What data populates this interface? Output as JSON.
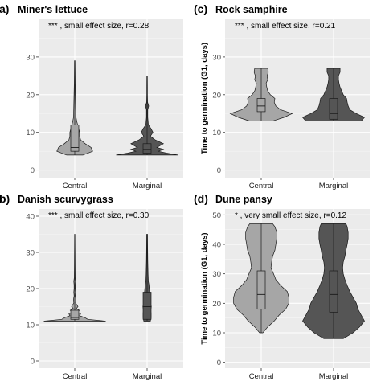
{
  "chart_data": [
    {
      "type": "violin",
      "tag": "a)",
      "title": "Miner's lettuce",
      "annotation": "*** , small effect size, r=0.28",
      "ylabel": "",
      "ylim": [
        -2,
        40
      ],
      "yticks": [
        "0",
        "10",
        "20",
        "30"
      ],
      "yticks_values": [
        0,
        10,
        20,
        30
      ],
      "categories": [
        "Central",
        "Marginal"
      ],
      "colors": [
        "#a6a6a6",
        "#555555"
      ],
      "series": [
        {
          "name": "Central",
          "min": 4,
          "q1": 5,
          "median": 6,
          "q3": 12,
          "max": 29,
          "density": [
            [
              4,
              0.25
            ],
            [
              5,
              0.55
            ],
            [
              6,
              0.5
            ],
            [
              7,
              0.32
            ],
            [
              8,
              0.18
            ],
            [
              9,
              0.15
            ],
            [
              10,
              0.15
            ],
            [
              11,
              0.12
            ],
            [
              12,
              0.09
            ],
            [
              13,
              0.06
            ],
            [
              14,
              0.04
            ],
            [
              15,
              0.035
            ],
            [
              17,
              0.03
            ],
            [
              19,
              0.025
            ],
            [
              21,
              0.02
            ],
            [
              23,
              0.015
            ],
            [
              25,
              0.012
            ],
            [
              27,
              0.01
            ],
            [
              29,
              0.008
            ]
          ]
        },
        {
          "name": "Marginal",
          "min": 4,
          "q1": 4.5,
          "median": 5.5,
          "q3": 7,
          "max": 25,
          "density": [
            [
              4,
              0.95
            ],
            [
              4.5,
              0.6
            ],
            [
              5,
              0.35
            ],
            [
              5.5,
              0.5
            ],
            [
              6,
              0.3
            ],
            [
              7,
              0.5
            ],
            [
              8,
              0.25
            ],
            [
              9,
              0.1
            ],
            [
              10,
              0.18
            ],
            [
              11,
              0.12
            ],
            [
              12,
              0.04
            ],
            [
              14,
              0.02
            ],
            [
              16,
              0.02
            ],
            [
              17,
              0.05
            ],
            [
              18,
              0.015
            ],
            [
              20,
              0.01
            ],
            [
              22,
              0.01
            ],
            [
              25,
              0.008
            ]
          ]
        }
      ]
    },
    {
      "type": "violin",
      "tag": "(c)",
      "title": "Rock samphire",
      "annotation": "*** , small effect size, r=0.21",
      "ylabel": "Time to germination (G1, days)",
      "ylim": [
        -2,
        40
      ],
      "yticks": [
        "0",
        "10",
        "20",
        "30"
      ],
      "yticks_values": [
        0,
        10,
        20,
        30
      ],
      "categories": [
        "Central",
        "Marginal"
      ],
      "colors": [
        "#a6a6a6",
        "#555555"
      ],
      "series": [
        {
          "name": "Central",
          "min": 13,
          "q1": 15.5,
          "median": 17,
          "q3": 19,
          "max": 27,
          "density": [
            [
              13,
              0.35
            ],
            [
              14,
              0.7
            ],
            [
              15,
              0.95
            ],
            [
              16,
              0.6
            ],
            [
              17,
              0.45
            ],
            [
              18,
              0.4
            ],
            [
              19,
              0.42
            ],
            [
              20,
              0.28
            ],
            [
              21,
              0.2
            ],
            [
              22,
              0.17
            ],
            [
              23,
              0.15
            ],
            [
              24,
              0.2
            ],
            [
              25,
              0.18
            ],
            [
              26,
              0.22
            ],
            [
              27,
              0.2
            ]
          ]
        },
        {
          "name": "Marginal",
          "min": 13,
          "q1": 13.5,
          "median": 15,
          "q3": 19,
          "max": 27,
          "density": [
            [
              13,
              0.85
            ],
            [
              14,
              0.95
            ],
            [
              15,
              0.7
            ],
            [
              16,
              0.5
            ],
            [
              17,
              0.45
            ],
            [
              18,
              0.42
            ],
            [
              19,
              0.4
            ],
            [
              20,
              0.3
            ],
            [
              21,
              0.25
            ],
            [
              22,
              0.2
            ],
            [
              23,
              0.17
            ],
            [
              24,
              0.15
            ],
            [
              25,
              0.15
            ],
            [
              26,
              0.2
            ],
            [
              27,
              0.2
            ]
          ]
        }
      ]
    },
    {
      "type": "violin",
      "tag": "b)",
      "title": "Danish scurvygrass",
      "annotation": "*** , small effect size, r=0.30",
      "ylabel": "",
      "ylim": [
        -2,
        42
      ],
      "yticks": [
        "0",
        "10",
        "20",
        "30",
        "40"
      ],
      "yticks_values": [
        0,
        10,
        20,
        30,
        40
      ],
      "categories": [
        "Central",
        "Marginal"
      ],
      "colors": [
        "#a6a6a6",
        "#555555"
      ],
      "series": [
        {
          "name": "Central",
          "min": 11,
          "q1": 11.5,
          "median": 12,
          "q3": 14,
          "max": 35,
          "density": [
            [
              11,
              0.95
            ],
            [
              11.5,
              0.4
            ],
            [
              12,
              0.3
            ],
            [
              12.5,
              0.15
            ],
            [
              13,
              0.18
            ],
            [
              13.5,
              0.08
            ],
            [
              14,
              0.14
            ],
            [
              14.5,
              0.05
            ],
            [
              15,
              0.1
            ],
            [
              16,
              0.03
            ],
            [
              17,
              0.04
            ],
            [
              18,
              0.02
            ],
            [
              19,
              0.03
            ],
            [
              20,
              0.02
            ],
            [
              21,
              0.02
            ],
            [
              22,
              0.03
            ],
            [
              23,
              0.015
            ],
            [
              25,
              0.012
            ],
            [
              28,
              0.01
            ],
            [
              31,
              0.008
            ],
            [
              35,
              0.006
            ]
          ]
        },
        {
          "name": "Marginal",
          "min": 11,
          "q1": 11.5,
          "median": 15,
          "q3": 19,
          "max": 35,
          "density": [
            [
              11,
              0.1
            ],
            [
              12,
              0.12
            ],
            [
              13,
              0.12
            ],
            [
              14,
              0.11
            ],
            [
              15,
              0.13
            ],
            [
              16,
              0.1
            ],
            [
              17,
              0.1
            ],
            [
              18,
              0.09
            ],
            [
              19,
              0.08
            ],
            [
              20,
              0.07
            ],
            [
              21,
              0.06
            ],
            [
              22,
              0.04
            ],
            [
              24,
              0.03
            ],
            [
              26,
              0.025
            ],
            [
              28,
              0.02
            ],
            [
              30,
              0.018
            ],
            [
              32,
              0.015
            ],
            [
              35,
              0.012
            ]
          ]
        }
      ]
    },
    {
      "type": "violin",
      "tag": "(d)",
      "title": "Dune pansy",
      "annotation": "* , very small effect size, r=0.12",
      "ylabel": "Time to germination (G1, days)",
      "ylim": [
        -2,
        52
      ],
      "yticks": [
        "0",
        "10",
        "20",
        "30",
        "40",
        "50"
      ],
      "yticks_values": [
        0,
        10,
        20,
        30,
        40,
        50
      ],
      "categories": [
        "Central",
        "Marginal"
      ],
      "colors": [
        "#a6a6a6",
        "#555555"
      ],
      "series": [
        {
          "name": "Central",
          "min": 10,
          "q1": 18,
          "median": 23,
          "q3": 31,
          "max": 47,
          "density": [
            [
              10,
              0.05
            ],
            [
              12,
              0.2
            ],
            [
              14,
              0.4
            ],
            [
              16,
              0.55
            ],
            [
              18,
              0.75
            ],
            [
              20,
              0.85
            ],
            [
              22,
              0.85
            ],
            [
              24,
              0.8
            ],
            [
              26,
              0.6
            ],
            [
              28,
              0.45
            ],
            [
              30,
              0.38
            ],
            [
              32,
              0.3
            ],
            [
              34,
              0.32
            ],
            [
              36,
              0.35
            ],
            [
              38,
              0.42
            ],
            [
              40,
              0.45
            ],
            [
              42,
              0.48
            ],
            [
              44,
              0.48
            ],
            [
              46,
              0.42
            ],
            [
              47,
              0.35
            ]
          ]
        },
        {
          "name": "Marginal",
          "min": 8,
          "q1": 17,
          "median": 23,
          "q3": 31,
          "max": 47,
          "density": [
            [
              8,
              0.3
            ],
            [
              10,
              0.6
            ],
            [
              12,
              0.8
            ],
            [
              14,
              0.95
            ],
            [
              16,
              0.85
            ],
            [
              18,
              0.75
            ],
            [
              20,
              0.7
            ],
            [
              22,
              0.6
            ],
            [
              24,
              0.5
            ],
            [
              26,
              0.42
            ],
            [
              28,
              0.35
            ],
            [
              30,
              0.3
            ],
            [
              32,
              0.28
            ],
            [
              34,
              0.3
            ],
            [
              36,
              0.35
            ],
            [
              38,
              0.38
            ],
            [
              40,
              0.42
            ],
            [
              42,
              0.45
            ],
            [
              44,
              0.45
            ],
            [
              46,
              0.42
            ],
            [
              47,
              0.38
            ]
          ]
        }
      ]
    }
  ]
}
